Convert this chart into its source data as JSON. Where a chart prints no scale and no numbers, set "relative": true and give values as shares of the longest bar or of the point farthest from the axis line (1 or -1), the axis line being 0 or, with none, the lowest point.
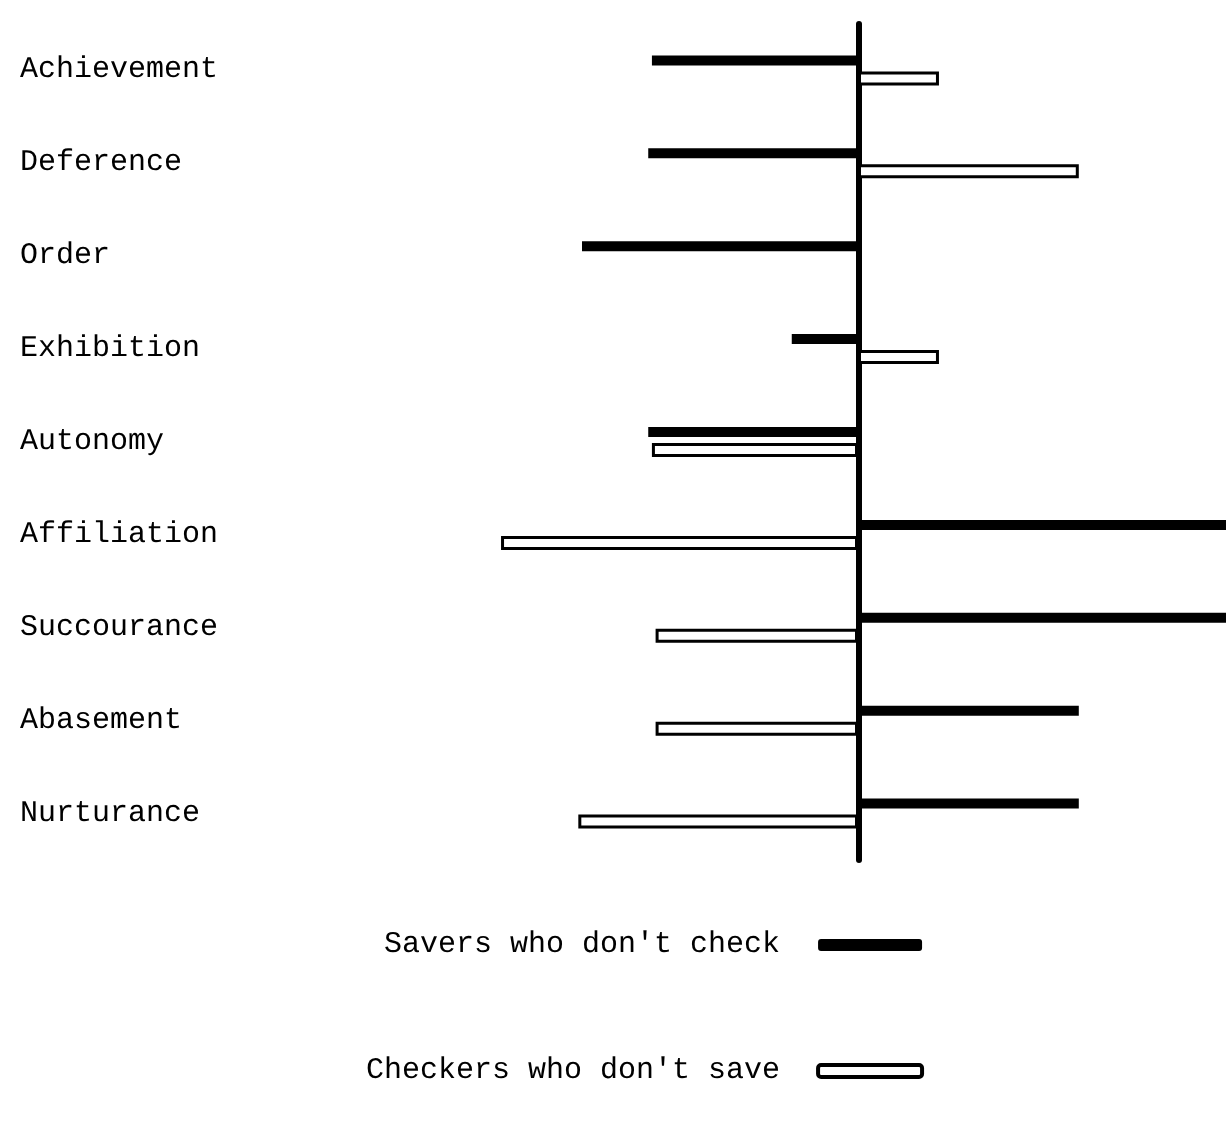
{
  "chart_data": {
    "type": "bar",
    "orientation": "horizontal",
    "relative": true,
    "legend": "bottom",
    "grid": false,
    "categories": [
      "Achievement",
      "Deference",
      "Order",
      "Exhibition",
      "Autonomy",
      "Affiliation",
      "Succourance",
      "Abasement",
      "Nurturance"
    ],
    "series": [
      {
        "name": "Savers who don't check",
        "color": "#000000",
        "values": [
          -0.56,
          -0.57,
          -0.75,
          -0.18,
          -0.57,
          1.0,
          1.0,
          0.6,
          0.6
        ]
      },
      {
        "name": "Checkers who don't save",
        "color": "#ffffff",
        "values": [
          0.22,
          0.6,
          null,
          0.22,
          -0.56,
          -0.97,
          -0.55,
          -0.55,
          -0.76
        ]
      }
    ]
  }
}
